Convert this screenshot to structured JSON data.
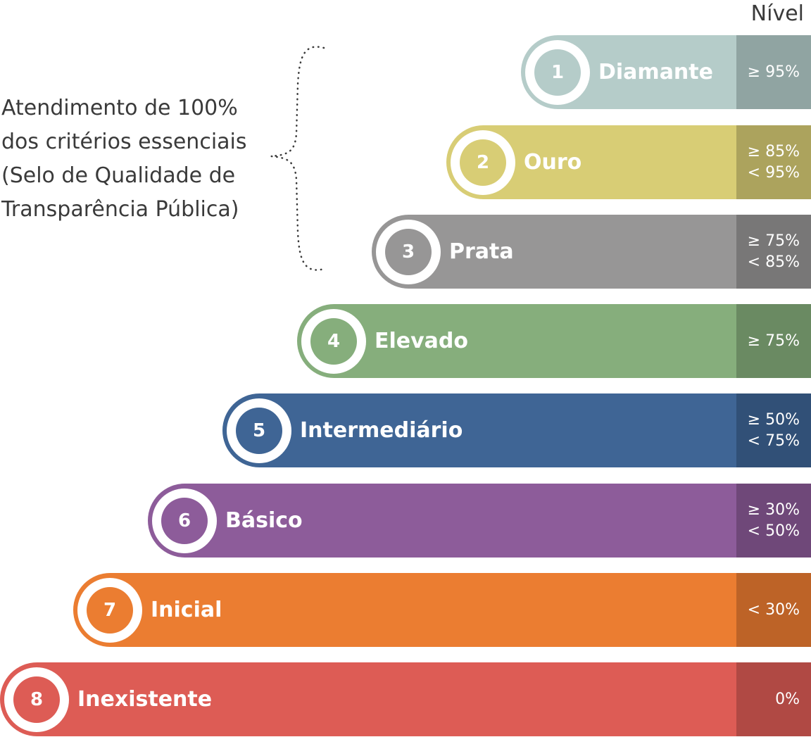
{
  "header": {
    "label": "Nível"
  },
  "note": {
    "lines": [
      "Atendimento de 100%",
      "dos critérios essenciais",
      "(Selo de Qualidade de",
      "Transparência Pública)"
    ]
  },
  "levels": [
    {
      "number": "1",
      "name": "Diamante",
      "range": [
        "≥ 95%"
      ],
      "color": "#b5ccc9",
      "dark": "#90a4a2"
    },
    {
      "number": "2",
      "name": "Ouro",
      "range": [
        "≥ 85%",
        "< 95%"
      ],
      "color": "#d8cd75",
      "dark": "#aca35d"
    },
    {
      "number": "3",
      "name": "Prata",
      "range": [
        "≥ 75%",
        "< 85%"
      ],
      "color": "#979696",
      "dark": "#787777"
    },
    {
      "number": "4",
      "name": "Elevado",
      "range": [
        "≥ 75%"
      ],
      "color": "#86ae7c",
      "dark": "#6a8a62"
    },
    {
      "number": "5",
      "name": "Intermediário",
      "range": [
        "≥ 50%",
        "< 75%"
      ],
      "color": "#3f6595",
      "dark": "#315077"
    },
    {
      "number": "6",
      "name": "Básico",
      "range": [
        "≥ 30%",
        "< 50%"
      ],
      "color": "#8d5c9a",
      "dark": "#6f4879"
    },
    {
      "number": "7",
      "name": "Inicial",
      "range": [
        "< 30%"
      ],
      "color": "#eb7d31",
      "dark": "#bd6327"
    },
    {
      "number": "8",
      "name": "Inexistente",
      "range": [
        "0%"
      ],
      "color": "#dd5c55",
      "dark": "#b04944"
    }
  ]
}
